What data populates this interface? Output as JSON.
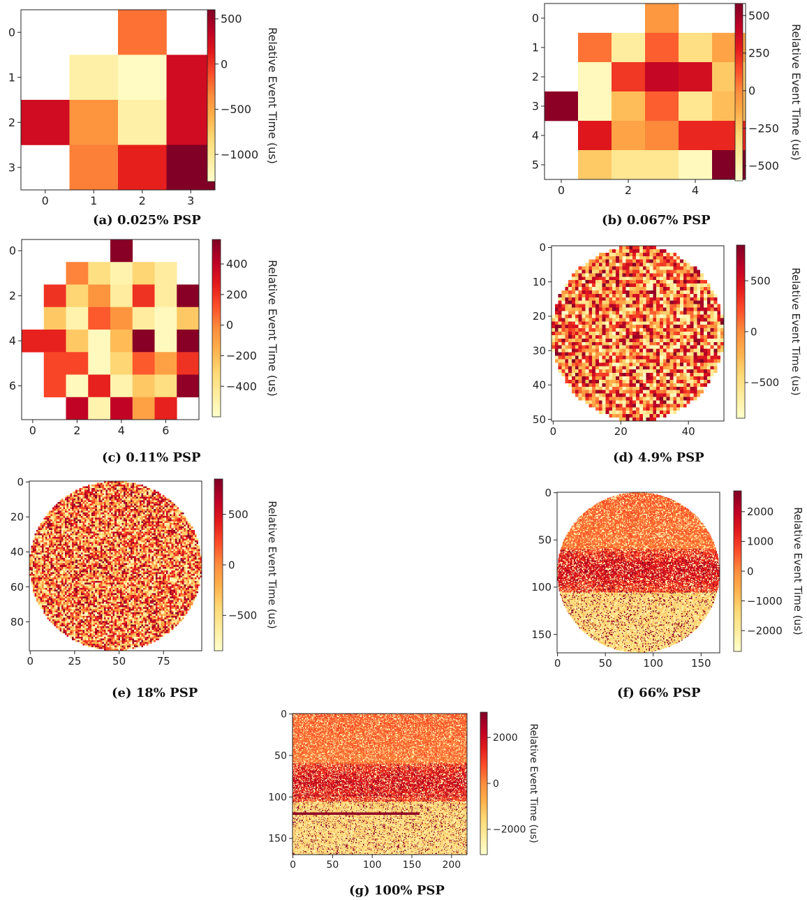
{
  "colormap": [
    "#ffffcc",
    "#ffeda0",
    "#fed976",
    "#feb24c",
    "#fd8d3c",
    "#fc4e2a",
    "#e31a1c",
    "#bd0026",
    "#800026"
  ],
  "chart_data": [
    {
      "id": "a",
      "type": "heatmap",
      "caption": "(a) 0.025% PSP",
      "rows": 4,
      "cols": 4,
      "xticks": [
        0,
        1,
        2,
        3
      ],
      "yticks": [
        0,
        1,
        2,
        3
      ],
      "xtick_labels": [
        "0",
        "1",
        "2",
        "3"
      ],
      "ytick_labels": [
        "0",
        "1",
        "2",
        "3"
      ],
      "colorbar": {
        "label": "Relative Event Time (us)",
        "min": -1300,
        "max": 600,
        "ticks": [
          500,
          0,
          -500,
          -1000
        ],
        "tick_labels": [
          "500",
          "0",
          "−500",
          "−1000"
        ]
      },
      "values": [
        [
          null,
          null,
          -250,
          null
        ],
        [
          null,
          -1100,
          -1250,
          250
        ],
        [
          250,
          -400,
          -1100,
          250
        ],
        [
          null,
          -300,
          100,
          600
        ]
      ]
    },
    {
      "id": "b",
      "type": "heatmap",
      "caption": "(b) 0.067% PSP",
      "rows": 6,
      "cols": 6,
      "xticks": [
        0,
        2,
        4
      ],
      "yticks": [
        0,
        1,
        2,
        3,
        4,
        5
      ],
      "xtick_labels": [
        "0",
        "2",
        "4"
      ],
      "ytick_labels": [
        "0",
        "1",
        "2",
        "3",
        "4",
        "5"
      ],
      "colorbar": {
        "label": "Relative Event Time (us)",
        "min": -600,
        "max": 580,
        "ticks": [
          500,
          250,
          0,
          -250,
          -500
        ],
        "tick_labels": [
          "500",
          "250",
          "0",
          "−250",
          "−500"
        ]
      },
      "values": [
        [
          null,
          null,
          null,
          -50,
          null,
          null
        ],
        [
          null,
          50,
          -450,
          100,
          -350,
          -100
        ],
        [
          null,
          -550,
          200,
          400,
          350,
          -250
        ],
        [
          550,
          -550,
          -200,
          100,
          -400,
          -200
        ],
        [
          null,
          300,
          -100,
          0,
          250,
          250
        ],
        [
          null,
          -250,
          -400,
          -400,
          -550,
          580
        ]
      ]
    },
    {
      "id": "c",
      "type": "heatmap",
      "caption": "(c) 0.11% PSP",
      "rows": 8,
      "cols": 8,
      "xticks": [
        0,
        2,
        4,
        6
      ],
      "yticks": [
        0,
        2,
        4,
        6
      ],
      "xtick_labels": [
        "0",
        "2",
        "4",
        "6"
      ],
      "ytick_labels": [
        "0",
        "2",
        "4",
        "6"
      ],
      "colorbar": {
        "label": "Relative Event Time (us)",
        "min": -600,
        "max": 560,
        "ticks": [
          400,
          200,
          0,
          -200,
          -400
        ],
        "tick_labels": [
          "400",
          "200",
          "0",
          "−200",
          "−400"
        ]
      },
      "values": [
        [
          null,
          null,
          null,
          null,
          540,
          null,
          null,
          null
        ],
        [
          null,
          null,
          0,
          -350,
          -500,
          -300,
          -450,
          null
        ],
        [
          null,
          200,
          -300,
          -50,
          -450,
          200,
          -450,
          540
        ],
        [
          null,
          -250,
          -500,
          100,
          -50,
          -450,
          -550,
          -250
        ],
        [
          250,
          250,
          -250,
          -550,
          -200,
          540,
          -550,
          540
        ],
        [
          null,
          150,
          150,
          -550,
          -300,
          100,
          -100,
          200
        ],
        [
          null,
          150,
          -550,
          250,
          -500,
          -250,
          -350,
          520
        ],
        [
          null,
          null,
          400,
          -500,
          400,
          -100,
          250,
          null
        ]
      ]
    },
    {
      "id": "d",
      "type": "heatmap",
      "caption": "(d) 4.9% PSP",
      "grid_size": 51,
      "mask": "circle",
      "xticks": [
        0,
        20,
        40
      ],
      "yticks": [
        0,
        10,
        20,
        30,
        40,
        50
      ],
      "xtick_labels": [
        "0",
        "20",
        "40"
      ],
      "ytick_labels": [
        "0",
        "10",
        "20",
        "30",
        "40",
        "50"
      ],
      "colorbar": {
        "label": "Relative Event Time (us)",
        "min": -850,
        "max": 850,
        "ticks": [
          500,
          0,
          -500
        ],
        "tick_labels": [
          "500",
          "0",
          "−500"
        ]
      },
      "value_distribution": "random, roughly uniform over colorbar range"
    },
    {
      "id": "e",
      "type": "heatmap",
      "caption": "(e) 18% PSP",
      "grid_size": 97,
      "mask": "circle",
      "xticks": [
        0,
        25,
        50,
        75
      ],
      "yticks": [
        0,
        20,
        40,
        60,
        80
      ],
      "xtick_labels": [
        "0",
        "25",
        "50",
        "75"
      ],
      "ytick_labels": [
        "0",
        "20",
        "40",
        "60",
        "80"
      ],
      "colorbar": {
        "label": "Relative Event Time (us)",
        "min": -850,
        "max": 850,
        "ticks": [
          500,
          0,
          -500
        ],
        "tick_labels": [
          "500",
          "0",
          "−500"
        ]
      },
      "value_distribution": "random, roughly uniform over colorbar range"
    },
    {
      "id": "f",
      "type": "heatmap",
      "caption": "(f) 66% PSP",
      "grid_size": 170,
      "mask": "circle",
      "xticks": [
        0,
        50,
        100,
        150
      ],
      "yticks": [
        0,
        50,
        100,
        150
      ],
      "xtick_labels": [
        "0",
        "50",
        "100",
        "150"
      ],
      "ytick_labels": [
        "0",
        "50",
        "100",
        "150"
      ],
      "colorbar": {
        "label": "Relative Event Time (us)",
        "min": -2700,
        "max": 2700,
        "ticks": [
          2000,
          1000,
          0,
          -1000,
          -2000
        ],
        "tick_labels": [
          "2000",
          "1000",
          "0",
          "−1000",
          "−2000"
        ]
      },
      "value_distribution": "row-dependent: top rows orange, middle rows dark red, bottom rows pale yellow"
    },
    {
      "id": "g",
      "type": "heatmap",
      "caption": "(g) 100% PSP",
      "rows": 170,
      "cols": 220,
      "xticks": [
        0,
        50,
        100,
        150,
        200
      ],
      "yticks": [
        0,
        50,
        100,
        150
      ],
      "xtick_labels": [
        "0",
        "50",
        "100",
        "150",
        "200"
      ],
      "ytick_labels": [
        "0",
        "50",
        "100",
        "150"
      ],
      "colorbar": {
        "label": "Relative Event Time (us)",
        "min": -3100,
        "max": 3100,
        "ticks": [
          2000,
          0,
          -2000
        ],
        "tick_labels": [
          "2000",
          "0",
          "−2000"
        ]
      },
      "value_distribution": "row-dependent: top rows red/orange, middle rows dark red, bottom rows pale yellow with a dark band near row 120"
    }
  ]
}
